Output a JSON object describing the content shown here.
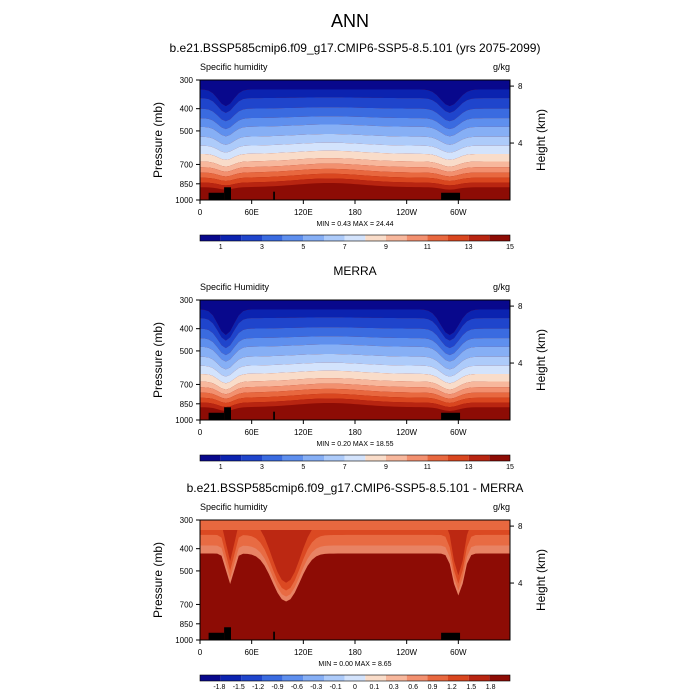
{
  "figure": {
    "title": "ANN"
  },
  "colormaps": {
    "abs": [
      "#08088c",
      "#0b23b0",
      "#1f45cc",
      "#3a6be0",
      "#5e8fee",
      "#86afF5",
      "#adcbfa",
      "#d3e3fc",
      "#f9dcc9",
      "#f7b79c",
      "#f2906f",
      "#e8683f",
      "#d9461f",
      "#b82511",
      "#8d0c05"
    ],
    "diff": [
      "#08088c",
      "#0b23b0",
      "#1f45cc",
      "#3a6be0",
      "#5e8fee",
      "#86afF5",
      "#adcbfa",
      "#d3e3fc",
      "#f9dcc9",
      "#f7b79c",
      "#f2906f",
      "#e8683f",
      "#d9461f",
      "#b82511",
      "#8d0c05"
    ]
  },
  "chart_data": [
    {
      "type": "heatmap",
      "title": "b.e21.BSSP585cmip6.f09_g17.CMIP6-SSP5-8.5.101 (yrs 2075-2099)",
      "left_label": "Specific humidity",
      "right_label": "g/kg",
      "ylabel": "Pressure (mb)",
      "y2label": "Height (km)",
      "xticks": [
        "0",
        "60E",
        "120E",
        "180",
        "120W",
        "60W"
      ],
      "yticks": [
        300,
        400,
        500,
        700,
        850,
        1000
      ],
      "y2ticks": [
        8,
        4
      ],
      "ylim": [
        1000,
        300
      ],
      "stats": "MIN =   0.43  MAX =  24.44",
      "colorbar_labels": [
        "1",
        "3",
        "5",
        "7",
        "9",
        "11",
        "13",
        "15"
      ],
      "colorbar_type": "abs"
    },
    {
      "type": "heatmap",
      "title": "MERRA",
      "left_label": "Specific Humidity",
      "right_label": "g/kg",
      "ylabel": "Pressure (mb)",
      "y2label": "Height (km)",
      "xticks": [
        "0",
        "60E",
        "120E",
        "180",
        "120W",
        "60W"
      ],
      "yticks": [
        300,
        400,
        500,
        700,
        850,
        1000
      ],
      "y2ticks": [
        8,
        4
      ],
      "ylim": [
        1000,
        300
      ],
      "stats": "MIN =   0.20  MAX =  18.55",
      "colorbar_labels": [
        "1",
        "3",
        "5",
        "7",
        "9",
        "11",
        "13",
        "15"
      ],
      "colorbar_type": "abs"
    },
    {
      "type": "heatmap",
      "title": "b.e21.BSSP585cmip6.f09_g17.CMIP6-SSP5-8.5.101 - MERRA",
      "left_label": "Specific humidity",
      "right_label": "g/kg",
      "ylabel": "Pressure (mb)",
      "y2label": "Height (km)",
      "xticks": [
        "0",
        "60E",
        "120E",
        "180",
        "120W",
        "60W"
      ],
      "yticks": [
        300,
        400,
        500,
        700,
        850,
        1000
      ],
      "y2ticks": [
        8,
        4
      ],
      "ylim": [
        1000,
        300
      ],
      "stats": "MIN =   0.00  MAX =   8.65",
      "colorbar_labels": [
        "-1.8",
        "-1.5",
        "-1.2",
        "-0.9",
        "-0.6",
        "-0.3",
        "-0.1",
        "0",
        "0.1",
        "0.3",
        "0.6",
        "0.9",
        "1.2",
        "1.5",
        "1.8"
      ],
      "colorbar_type": "diff"
    }
  ]
}
